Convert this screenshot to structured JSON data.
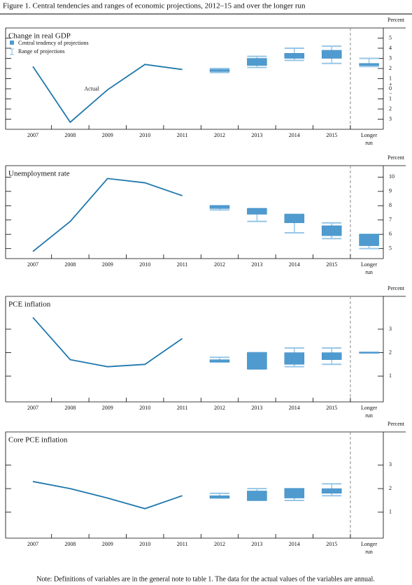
{
  "title": "Figure 1. Central tendencies and ranges of economic projections, 2012–15 and over the longer run",
  "note": "Note: Definitions of variables are in the general note to table 1. The data for the actual values of the variables are annual.",
  "legend": {
    "central": "Central tendency of projections",
    "range": "Range of projections"
  },
  "chart_data": [
    {
      "type": "line",
      "title": "Change in real GDP",
      "unit_label": "Percent",
      "categories": [
        "2007",
        "2008",
        "2009",
        "2010",
        "2011",
        "2012",
        "2013",
        "2014",
        "2015",
        "Longer run"
      ],
      "series": [
        {
          "name": "Actual",
          "color": "#1f78ad",
          "values": [
            2.2,
            -3.3,
            -0.1,
            2.4,
            1.9,
            null,
            null,
            null,
            null,
            null
          ]
        }
      ],
      "central_low": [
        null,
        null,
        null,
        null,
        null,
        1.7,
        2.3,
        3.0,
        3.0,
        2.3
      ],
      "central_high": [
        null,
        null,
        null,
        null,
        null,
        1.9,
        3.0,
        3.5,
        3.8,
        2.5
      ],
      "range_low": [
        null,
        null,
        null,
        null,
        null,
        1.6,
        2.1,
        2.8,
        2.5,
        2.2
      ],
      "range_high": [
        null,
        null,
        null,
        null,
        null,
        2.0,
        3.2,
        4.0,
        4.2,
        3.0
      ],
      "central_color": "#4f9bd0",
      "range_color": "#96c6e6",
      "ylim": [
        -4,
        6
      ],
      "yticks": [
        5,
        4,
        3,
        2,
        1,
        0,
        {
          "value": -1,
          "label": "1"
        },
        {
          "value": -2,
          "label": "2"
        },
        {
          "value": -3,
          "label": "3"
        }
      ],
      "axis_signs": [
        "+",
        "−"
      ],
      "legend": true
    },
    {
      "type": "line",
      "title": "Unemployment rate",
      "unit_label": "Percent",
      "categories": [
        "2007",
        "2008",
        "2009",
        "2010",
        "2011",
        "2012",
        "2013",
        "2014",
        "2015",
        "Longer run"
      ],
      "series": [
        {
          "color": "#1f78ad",
          "values": [
            4.8,
            6.9,
            9.9,
            9.6,
            8.7,
            null,
            null,
            null,
            null,
            null
          ]
        }
      ],
      "central_low": [
        null,
        null,
        null,
        null,
        null,
        7.8,
        7.4,
        6.8,
        5.9,
        5.2
      ],
      "central_high": [
        null,
        null,
        null,
        null,
        null,
        8.0,
        7.8,
        7.4,
        6.6,
        6.0
      ],
      "range_low": [
        null,
        null,
        null,
        null,
        null,
        7.7,
        6.9,
        6.1,
        5.7,
        5.0
      ],
      "range_high": [
        null,
        null,
        null,
        null,
        null,
        8.0,
        7.8,
        7.4,
        6.8,
        6.0
      ],
      "central_color": "#4f9bd0",
      "range_color": "#96c6e6",
      "ylim": [
        4.3,
        10.8
      ],
      "yticks": [
        10,
        9,
        8,
        7,
        6,
        5
      ]
    },
    {
      "type": "line",
      "title": "PCE inflation",
      "unit_label": "Percent",
      "categories": [
        "2007",
        "2008",
        "2009",
        "2010",
        "2011",
        "2012",
        "2013",
        "2014",
        "2015",
        "Longer run"
      ],
      "series": [
        {
          "color": "#1f78ad",
          "values": [
            3.5,
            1.7,
            1.4,
            1.5,
            2.6,
            null,
            null,
            null,
            null,
            null
          ]
        }
      ],
      "central_low": [
        null,
        null,
        null,
        null,
        null,
        1.6,
        1.3,
        1.5,
        1.7,
        2.0
      ],
      "central_high": [
        null,
        null,
        null,
        null,
        null,
        1.7,
        2.0,
        2.0,
        2.0,
        2.0
      ],
      "range_low": [
        null,
        null,
        null,
        null,
        null,
        1.6,
        1.3,
        1.4,
        1.5,
        2.0
      ],
      "range_high": [
        null,
        null,
        null,
        null,
        null,
        1.8,
        2.0,
        2.2,
        2.2,
        2.0
      ],
      "central_color": "#4f9bd0",
      "range_color": "#96c6e6",
      "ylim": [
        -0.1,
        4.4
      ],
      "yticks": [
        3,
        2,
        1
      ]
    },
    {
      "type": "line",
      "title": "Core PCE inflation",
      "unit_label": "Percent",
      "categories": [
        "2007",
        "2008",
        "2009",
        "2010",
        "2011",
        "2012",
        "2013",
        "2014",
        "2015",
        "Longer run"
      ],
      "series": [
        {
          "color": "#1f78ad",
          "values": [
            2.3,
            2.0,
            1.6,
            1.15,
            1.7,
            null,
            null,
            null,
            null,
            null
          ]
        }
      ],
      "central_low": [
        null,
        null,
        null,
        null,
        null,
        1.6,
        1.5,
        1.6,
        1.8,
        null
      ],
      "central_high": [
        null,
        null,
        null,
        null,
        null,
        1.7,
        1.9,
        2.0,
        2.0,
        null
      ],
      "range_low": [
        null,
        null,
        null,
        null,
        null,
        1.6,
        1.5,
        1.5,
        1.7,
        null
      ],
      "range_high": [
        null,
        null,
        null,
        null,
        null,
        1.8,
        2.0,
        2.0,
        2.2,
        null
      ],
      "central_color": "#4f9bd0",
      "range_color": "#96c6e6",
      "ylim": [
        -0.1,
        4.4
      ],
      "yticks": [
        3,
        2,
        1
      ]
    }
  ]
}
